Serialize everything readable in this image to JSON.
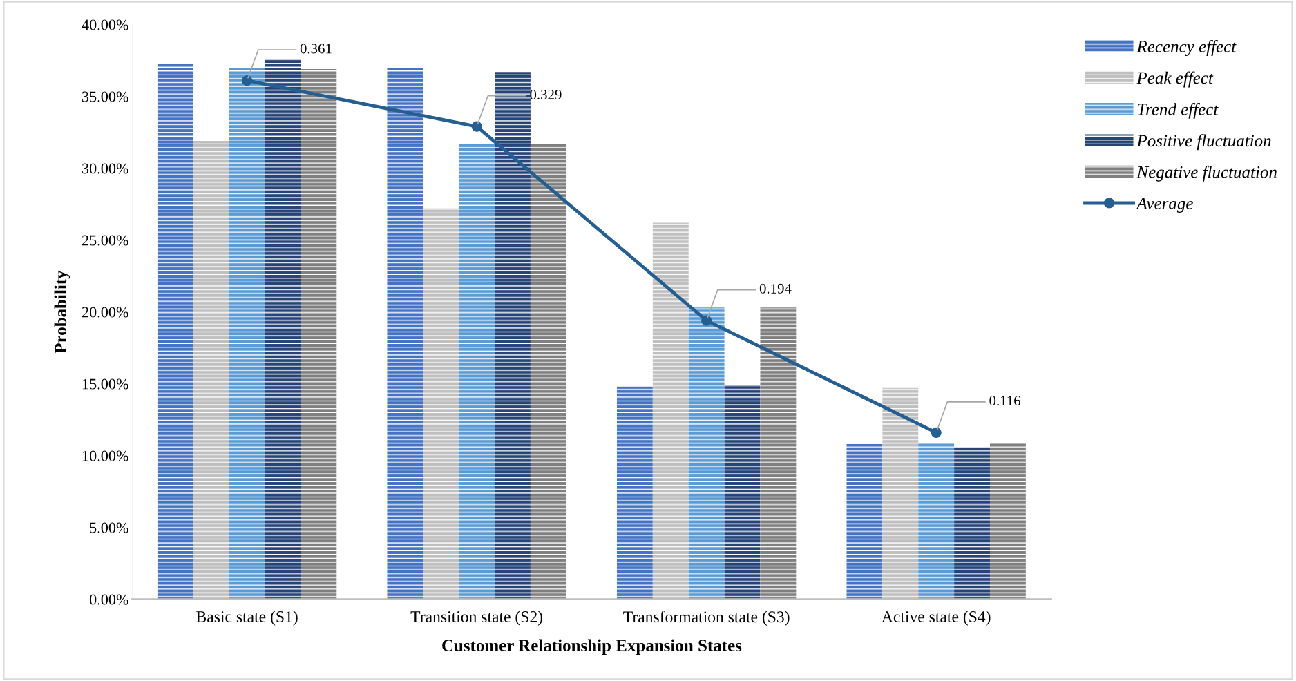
{
  "chart_data": {
    "type": "bar",
    "xlabel": "Customer Relationship Expansion States",
    "ylabel": "Probability",
    "categories": [
      "Basic state (S1)",
      "Transition state (S2)",
      "Transformation state (S3)",
      "Active state (S4)"
    ],
    "series": [
      {
        "name": "Recency effect",
        "color": "#4472c4",
        "values": [
          0.373,
          0.37,
          0.148,
          0.108
        ]
      },
      {
        "name": "Peak effect",
        "color": "#bfbfbf",
        "values": [
          0.319,
          0.272,
          0.262,
          0.147
        ]
      },
      {
        "name": "Trend effect",
        "color": "#5b9bd5",
        "values": [
          0.37,
          0.317,
          0.203,
          0.109
        ]
      },
      {
        "name": "Positive fluctuation",
        "color": "#264478",
        "values": [
          0.376,
          0.367,
          0.149,
          0.106
        ]
      },
      {
        "name": "Negative fluctuation",
        "color": "#7f7f7f",
        "values": [
          0.369,
          0.317,
          0.203,
          0.109
        ]
      },
      {
        "name": "Average",
        "type": "line",
        "color": "#255e91",
        "marker": "circle",
        "values": [
          0.361,
          0.329,
          0.194,
          0.116
        ],
        "value_labels": [
          "0.361",
          "0.329",
          "0.194",
          "0.116"
        ]
      }
    ],
    "ylim": [
      0,
      0.4
    ],
    "yticks": [
      {
        "value": 0,
        "label": "0.00%"
      },
      {
        "value": 0.05,
        "label": "5.00%"
      },
      {
        "value": 0.1,
        "label": "10.00%"
      },
      {
        "value": 0.15,
        "label": "15.00%"
      },
      {
        "value": 0.2,
        "label": "20.00%"
      },
      {
        "value": 0.25,
        "label": "25.00%"
      },
      {
        "value": 0.3,
        "label": "30.00%"
      },
      {
        "value": 0.35,
        "label": "35.00%"
      },
      {
        "value": 0.4,
        "label": "40.00%"
      }
    ],
    "grid": false,
    "legend": "top right"
  }
}
